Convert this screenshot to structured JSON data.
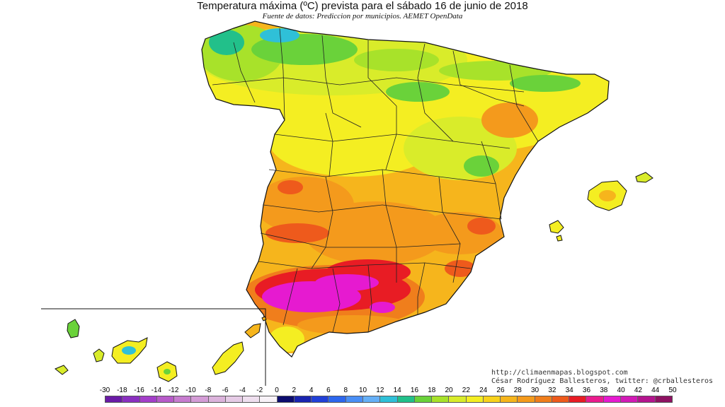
{
  "title": "Temperatura máxima (ºC) prevista para el sábado 16 de junio de 2018",
  "subtitle": "Fuente de datos: Prediccion por municipios. AEMET OpenData",
  "credits": {
    "line1": "http://climaenmapas.blogspot.com",
    "line2": "César Rodríguez Ballesteros, twitter: @crballesteros"
  },
  "legend": {
    "ticks": [
      "-30",
      "-18",
      "-16",
      "-14",
      "-12",
      "-10",
      "-8",
      "-6",
      "-4",
      "-2",
      "0",
      "2",
      "4",
      "6",
      "8",
      "10",
      "12",
      "14",
      "16",
      "18",
      "20",
      "22",
      "24",
      "26",
      "28",
      "30",
      "32",
      "34",
      "36",
      "38",
      "40",
      "42",
      "44",
      "50"
    ],
    "colors": [
      "#6a1aa6",
      "#8a2fc0",
      "#a33ec9",
      "#b75bc9",
      "#c77ccf",
      "#d49cd6",
      "#dcb3dc",
      "#e6cbe6",
      "#efdfef",
      "#f8f2f8",
      "#0c0c6e",
      "#1a24b0",
      "#2140d8",
      "#2d67ee",
      "#4a8ff6",
      "#66b0f7",
      "#2fc0d8",
      "#22c08a",
      "#6ad23a",
      "#a8e22a",
      "#d9ec2a",
      "#f4ee22",
      "#f8d21c",
      "#f6b51c",
      "#f49a1c",
      "#f07e1c",
      "#ee5a1c",
      "#e81c24",
      "#ea1c8e",
      "#e61ad0",
      "#d21ab6",
      "#b4148e",
      "#8e1262"
    ]
  }
}
